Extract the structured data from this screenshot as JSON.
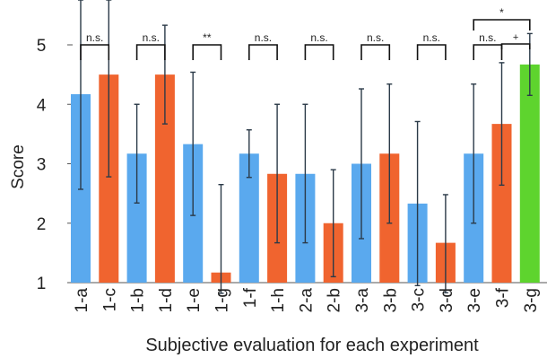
{
  "chart_data": {
    "type": "bar",
    "xlabel": "Subjective evaluation for each experiment",
    "ylabel": "Score",
    "ylim": [
      1,
      5
    ],
    "yticks": [
      1,
      2,
      3,
      4,
      5
    ],
    "grid": false,
    "categories": [
      "1-a",
      "1-c",
      "1-b",
      "1-d",
      "1-e",
      "1-g",
      "1-f",
      "1-h",
      "2-a",
      "2-b",
      "3-a",
      "3-b",
      "3-c",
      "3-d",
      "3-e",
      "3-f",
      "3-g"
    ],
    "values": [
      4.17,
      4.5,
      3.17,
      4.5,
      3.33,
      1.17,
      3.17,
      2.83,
      2.83,
      2.0,
      3.0,
      3.17,
      2.33,
      1.67,
      3.17,
      3.67,
      4.67
    ],
    "error_low": [
      2.57,
      2.78,
      2.34,
      3.67,
      2.13,
      0.82,
      2.77,
      1.67,
      1.67,
      1.1,
      1.74,
      2.0,
      0.95,
      0.83,
      2.0,
      2.64,
      4.15
    ],
    "error_high": [
      5.76,
      6.22,
      4.0,
      5.33,
      4.54,
      2.65,
      3.57,
      4.0,
      4.0,
      2.9,
      4.26,
      4.34,
      3.71,
      2.48,
      4.34,
      4.7,
      5.19
    ],
    "colors": [
      "#5aa9ee",
      "#f0642f",
      "#5aa9ee",
      "#f0642f",
      "#5aa9ee",
      "#f0642f",
      "#5aa9ee",
      "#f0642f",
      "#5aa9ee",
      "#f0642f",
      "#5aa9ee",
      "#f0642f",
      "#5aa9ee",
      "#f0642f",
      "#5aa9ee",
      "#f0642f",
      "#5ed42e"
    ],
    "comparisons": [
      {
        "from": 0,
        "to": 1,
        "label": "n.s."
      },
      {
        "from": 2,
        "to": 3,
        "label": "n.s."
      },
      {
        "from": 4,
        "to": 5,
        "label": "**"
      },
      {
        "from": 6,
        "to": 7,
        "label": "n.s."
      },
      {
        "from": 8,
        "to": 9,
        "label": "n.s."
      },
      {
        "from": 10,
        "to": 11,
        "label": "n.s."
      },
      {
        "from": 12,
        "to": 13,
        "label": "n.s."
      },
      {
        "from": 14,
        "to": 15,
        "label": "n.s."
      },
      {
        "from": 15,
        "to": 16,
        "label": "+"
      },
      {
        "from": 14,
        "to": 16,
        "label": "*"
      }
    ]
  }
}
